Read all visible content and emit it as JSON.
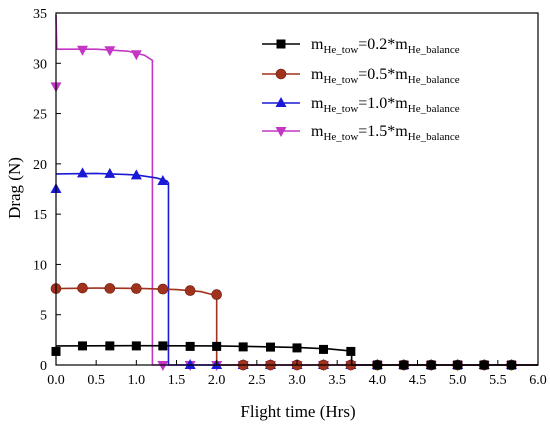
{
  "chart_data": {
    "type": "line",
    "xlabel": "Flight time (Hrs)",
    "ylabel": "Drag (N)",
    "xlim": [
      0,
      6
    ],
    "ylim": [
      0,
      35
    ],
    "xticks": [
      0.0,
      0.5,
      1.0,
      1.5,
      2.0,
      2.5,
      3.0,
      3.5,
      4.0,
      4.5,
      5.0,
      5.5,
      6.0
    ],
    "xtick_labels": [
      "0.0",
      "0.5",
      "1.0",
      "1.5",
      "2.0",
      "2.5",
      "3.0",
      "3.5",
      "4.0",
      "4.5",
      "5.0",
      "5.5",
      "6.0"
    ],
    "yticks": [
      0,
      5,
      10,
      15,
      20,
      25,
      30,
      35
    ],
    "ytick_labels": [
      "0",
      "5",
      "10",
      "15",
      "20",
      "25",
      "30",
      "35"
    ],
    "grid": false,
    "legend_position": "top-right",
    "series": [
      {
        "name_main": "m",
        "name_sub1": "He_tow",
        "name_mid": "=0.2*m",
        "name_sub2": "He_balance",
        "color": "#000000",
        "marker": "square",
        "curve": [
          [
            0,
            1.9
          ],
          [
            1.0,
            1.92
          ],
          [
            2.0,
            1.9
          ],
          [
            3.0,
            1.75
          ],
          [
            3.4,
            1.6
          ],
          [
            3.6,
            1.45
          ],
          [
            3.68,
            1.35
          ],
          [
            3.68,
            0
          ],
          [
            6.0,
            0
          ]
        ],
        "markers": [
          [
            0,
            1.35
          ],
          [
            0.33,
            1.9
          ],
          [
            0.67,
            1.9
          ],
          [
            1.0,
            1.9
          ],
          [
            1.33,
            1.9
          ],
          [
            1.67,
            1.85
          ],
          [
            2.0,
            1.85
          ],
          [
            2.33,
            1.8
          ],
          [
            2.67,
            1.78
          ],
          [
            3.0,
            1.7
          ],
          [
            3.33,
            1.55
          ],
          [
            3.67,
            1.35
          ],
          [
            4.0,
            0
          ],
          [
            4.33,
            0
          ],
          [
            4.67,
            0
          ],
          [
            5.0,
            0
          ],
          [
            5.33,
            0
          ],
          [
            5.67,
            0
          ]
        ]
      },
      {
        "name_main": "m",
        "name_sub1": "He_tow",
        "name_mid": "=0.5*m",
        "name_sub2": "He_balance",
        "color": "#a0321e",
        "marker": "circle",
        "curve": [
          [
            0,
            7.6
          ],
          [
            0.5,
            7.65
          ],
          [
            1.0,
            7.62
          ],
          [
            1.5,
            7.5
          ],
          [
            1.8,
            7.3
          ],
          [
            1.95,
            7.0
          ],
          [
            2.0,
            6.9
          ],
          [
            2.0,
            0
          ],
          [
            6.0,
            0
          ]
        ],
        "markers": [
          [
            0,
            7.6
          ],
          [
            0.33,
            7.65
          ],
          [
            0.67,
            7.62
          ],
          [
            1.0,
            7.6
          ],
          [
            1.33,
            7.55
          ],
          [
            1.67,
            7.4
          ],
          [
            2.0,
            7.0
          ],
          [
            2.33,
            0
          ],
          [
            2.67,
            0
          ],
          [
            3.0,
            0
          ],
          [
            3.33,
            0
          ],
          [
            3.67,
            0
          ],
          [
            4.0,
            0
          ],
          [
            4.33,
            0
          ],
          [
            4.67,
            0
          ],
          [
            5.0,
            0
          ],
          [
            5.33,
            0
          ],
          [
            5.67,
            0
          ]
        ]
      },
      {
        "name_main": "m",
        "name_sub1": "He_tow",
        "name_mid": "=1.0*m",
        "name_sub2": "He_balance",
        "color": "#1a1ad6",
        "marker": "triangle-up",
        "curve": [
          [
            0,
            19.0
          ],
          [
            0.5,
            19.05
          ],
          [
            1.0,
            18.9
          ],
          [
            1.25,
            18.6
          ],
          [
            1.38,
            18.3
          ],
          [
            1.4,
            18.1
          ],
          [
            1.4,
            0
          ],
          [
            6.0,
            0
          ]
        ],
        "markers": [
          [
            0,
            17.5
          ],
          [
            0.33,
            19.05
          ],
          [
            0.67,
            19.0
          ],
          [
            1.0,
            18.85
          ],
          [
            1.33,
            18.3
          ],
          [
            1.67,
            0
          ],
          [
            2.0,
            0
          ],
          [
            2.33,
            0
          ],
          [
            2.67,
            0
          ],
          [
            3.0,
            0
          ],
          [
            3.33,
            0
          ],
          [
            3.67,
            0
          ],
          [
            4.0,
            0
          ],
          [
            4.33,
            0
          ],
          [
            4.67,
            0
          ],
          [
            5.0,
            0
          ],
          [
            5.33,
            0
          ],
          [
            5.67,
            0
          ]
        ]
      },
      {
        "name_main": "m",
        "name_sub1": "He_tow",
        "name_mid": "=1.5*m",
        "name_sub2": "He_balance",
        "color": "#c436c4",
        "marker": "triangle-down",
        "curve": [
          [
            0,
            34.8
          ],
          [
            0.01,
            31.4
          ],
          [
            0.5,
            31.4
          ],
          [
            0.9,
            31.2
          ],
          [
            1.1,
            30.8
          ],
          [
            1.2,
            30.3
          ],
          [
            1.2,
            0
          ],
          [
            6.0,
            0
          ]
        ],
        "markers": [
          [
            0,
            27.7
          ],
          [
            0.33,
            31.35
          ],
          [
            0.67,
            31.3
          ],
          [
            1.0,
            30.9
          ],
          [
            1.33,
            0
          ],
          [
            1.67,
            0
          ],
          [
            2.0,
            0
          ],
          [
            2.33,
            0
          ],
          [
            2.67,
            0
          ],
          [
            3.0,
            0
          ],
          [
            3.33,
            0
          ],
          [
            3.67,
            0
          ],
          [
            4.0,
            0
          ],
          [
            4.33,
            0
          ],
          [
            4.67,
            0
          ],
          [
            5.0,
            0
          ],
          [
            5.33,
            0
          ],
          [
            5.67,
            0
          ]
        ]
      }
    ]
  }
}
